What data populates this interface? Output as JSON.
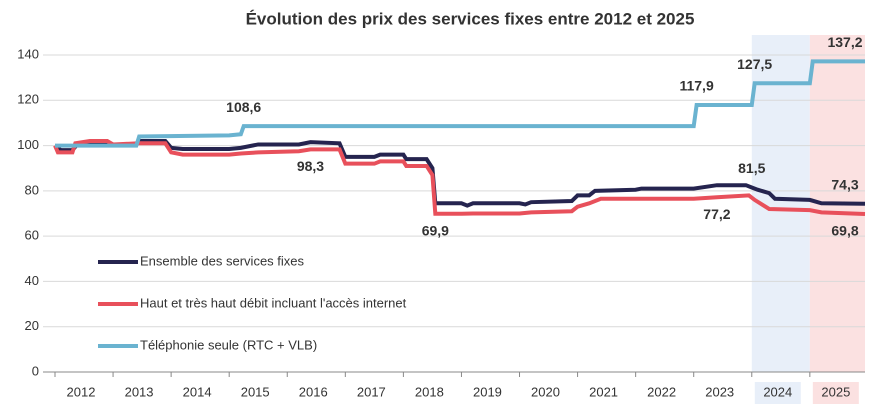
{
  "chart_data": {
    "type": "line",
    "title": "Évolution des prix des services fixes entre 2012 et 2025",
    "xlim": [
      2012,
      2025.95
    ],
    "xticks": [
      2012,
      2013,
      2014,
      2015,
      2016,
      2017,
      2018,
      2019,
      2020,
      2021,
      2022,
      2023,
      2024,
      2025
    ],
    "ylim": [
      0,
      140
    ],
    "yticks": [
      0,
      20,
      40,
      60,
      80,
      100,
      120,
      140
    ],
    "grid": true,
    "legend": "left",
    "bands": [
      {
        "from": 2024,
        "to": 2025,
        "color": "#e8eff9"
      },
      {
        "from": 2025,
        "to": 2025.95,
        "color": "#fbe1e1"
      }
    ],
    "series": [
      {
        "name": "Ensemble des services fixes",
        "color": "#25244f",
        "label_position": "above",
        "x": [
          2012,
          2012.1,
          2012.3,
          2012.4,
          2012.9,
          2013.0,
          2013.4,
          2013.45,
          2013.9,
          2014.0,
          2014.2,
          2015.0,
          2015.2,
          2015.5,
          2016.2,
          2016.4,
          2016.9,
          2017.0,
          2017.5,
          2017.6,
          2018.0,
          2018.05,
          2018.4,
          2018.5,
          2018.55,
          2019.0,
          2019.1,
          2019.2,
          2020.0,
          2020.1,
          2020.2,
          2020.9,
          2021.0,
          2021.2,
          2021.3,
          2022.0,
          2022.1,
          2023.0,
          2023.4,
          2023.9,
          2024.0,
          2024.1,
          2024.3,
          2024.4,
          2025.0,
          2025.2,
          2025.95
        ],
        "values": [
          100,
          98,
          98,
          101,
          101,
          100.5,
          100.5,
          102,
          102,
          99,
          98.5,
          98.5,
          99,
          100.5,
          100.5,
          101.5,
          101,
          95,
          95,
          96,
          96,
          94,
          94,
          90,
          74.5,
          74.5,
          73.5,
          74.5,
          74.5,
          74,
          75,
          75.5,
          78,
          78,
          80,
          80.5,
          81,
          81,
          82.5,
          82.5,
          81.5,
          80.5,
          79,
          76.5,
          76,
          74.5,
          74.3
        ],
        "value_labels": [
          null,
          null,
          null,
          null,
          null,
          null,
          null,
          null,
          null,
          null,
          null,
          null,
          null,
          null,
          null,
          null,
          null,
          null,
          null,
          null,
          null,
          null,
          null,
          null,
          null,
          null,
          null,
          null,
          null,
          null,
          null,
          null,
          null,
          null,
          null,
          null,
          null,
          null,
          null,
          null,
          "81,5",
          null,
          null,
          null,
          null,
          null,
          "74,3"
        ]
      },
      {
        "name": "Haut et très haut débit incluant l'accès internet",
        "color": "#e8505b",
        "label_position": "below",
        "x": [
          2012,
          2012.05,
          2012.3,
          2012.35,
          2012.6,
          2012.9,
          2013.0,
          2013.45,
          2013.9,
          2014.0,
          2014.2,
          2015.0,
          2015.2,
          2015.5,
          2016.2,
          2016.4,
          2016.9,
          2017.0,
          2017.5,
          2017.6,
          2018.0,
          2018.05,
          2018.4,
          2018.5,
          2018.55,
          2019.0,
          2019.2,
          2020.0,
          2020.2,
          2020.9,
          2021.0,
          2021.2,
          2021.4,
          2023.0,
          2023.4,
          2023.95,
          2024.05,
          2024.3,
          2025.0,
          2025.2,
          2025.95
        ],
        "values": [
          100,
          97,
          97,
          101,
          102,
          102,
          100.5,
          101,
          101,
          97,
          96,
          96,
          96.5,
          97,
          97.5,
          98.3,
          98.3,
          92,
          92,
          93,
          93,
          91,
          91,
          87,
          69.9,
          69.9,
          70,
          70,
          70.5,
          71,
          73,
          74.5,
          76.5,
          76.5,
          77.2,
          78,
          76,
          72,
          71.5,
          70.5,
          69.8
        ],
        "value_labels": [
          null,
          null,
          null,
          null,
          null,
          null,
          null,
          null,
          null,
          null,
          null,
          null,
          null,
          null,
          null,
          "98,3",
          null,
          null,
          null,
          null,
          null,
          null,
          null,
          null,
          "69,9",
          null,
          null,
          null,
          null,
          null,
          null,
          null,
          null,
          null,
          "77,2",
          null,
          null,
          null,
          null,
          null,
          "69,8"
        ]
      },
      {
        "name": "Téléphonie seule (RTC + VLB)",
        "color": "#6ab3d0",
        "label_position": "above",
        "x": [
          2012,
          2013.4,
          2013.45,
          2015.0,
          2015.2,
          2015.25,
          2023.0,
          2023.05,
          2024.0,
          2024.05,
          2025.0,
          2025.05,
          2025.95
        ],
        "values": [
          100,
          100,
          104,
          104.5,
          105,
          108.6,
          108.6,
          117.9,
          117.9,
          127.5,
          127.5,
          137.2,
          137.2
        ],
        "value_labels": [
          null,
          null,
          null,
          null,
          null,
          "108,6",
          null,
          "117,9",
          null,
          "127,5",
          null,
          null,
          "137,2"
        ]
      }
    ]
  }
}
